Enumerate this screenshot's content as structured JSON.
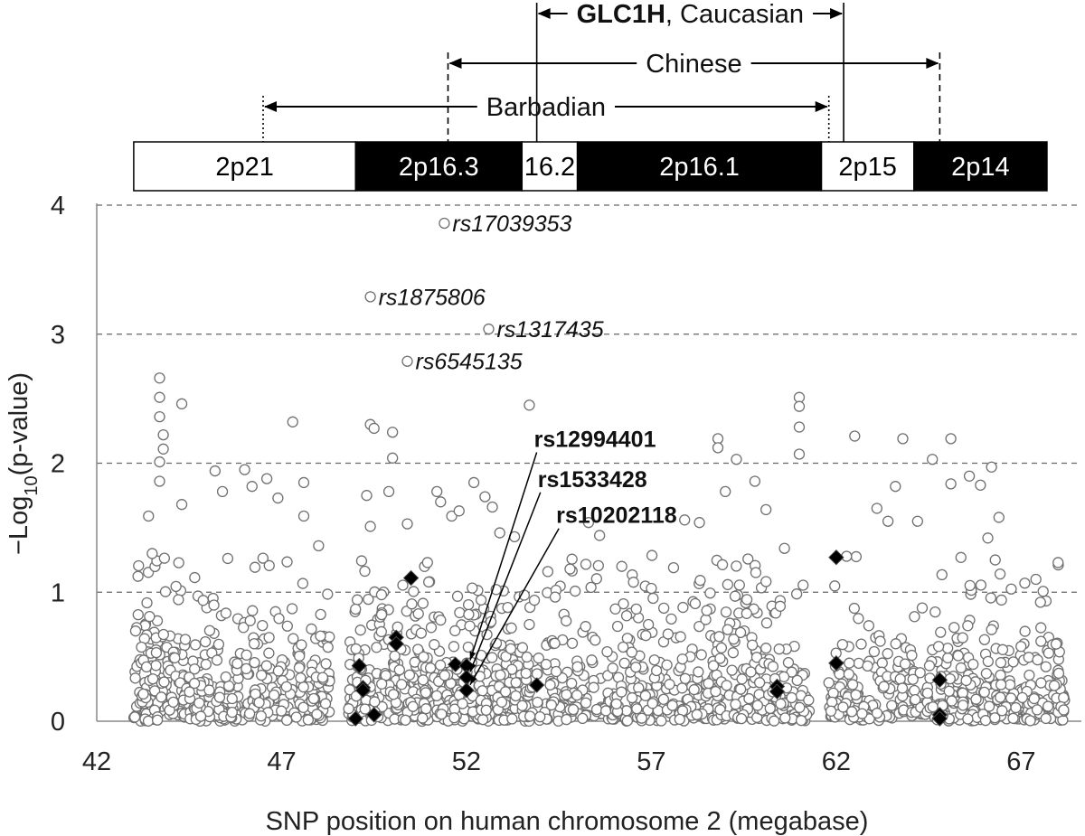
{
  "chart_data": {
    "type": "scatter",
    "xlabel": "SNP position on human chromosome 2 (megabase)",
    "ylabel_main": "−Log",
    "ylabel_sub": "10",
    "ylabel_end": "(p-value)",
    "xlim": [
      42,
      68.5
    ],
    "ylim": [
      0,
      4
    ],
    "x_ticks": [
      42,
      47,
      52,
      57,
      62,
      67
    ],
    "y_ticks": [
      0,
      1,
      2,
      3,
      4
    ],
    "y_gridlines": [
      1,
      2,
      3,
      4
    ],
    "grid": "horizontal dashed",
    "chromosome_bands": [
      {
        "label": "2p21",
        "start": 43.0,
        "end": 49.0,
        "fill": "#ffffff",
        "text_color": "#000000"
      },
      {
        "label": "2p16.3",
        "start": 49.0,
        "end": 53.5,
        "fill": "#000000",
        "text_color": "#ffffff"
      },
      {
        "label": "16.2",
        "start": 53.5,
        "end": 55.0,
        "fill": "#ffffff",
        "text_color": "#000000"
      },
      {
        "label": "2p16.1",
        "start": 55.0,
        "end": 61.6,
        "fill": "#000000",
        "text_color": "#ffffff"
      },
      {
        "label": "2p15",
        "start": 61.6,
        "end": 64.1,
        "fill": "#ffffff",
        "text_color": "#000000"
      },
      {
        "label": "2p14",
        "start": 64.1,
        "end": 67.7,
        "fill": "#000000",
        "text_color": "#ffffff"
      }
    ],
    "linkage_regions": [
      {
        "label_bold": "GLC1H",
        "label_rest": ", Caucasian",
        "start": 53.9,
        "end": 62.2,
        "start_style": "solid",
        "end_style": "solid"
      },
      {
        "label_bold": "",
        "label_rest": "Chinese",
        "start": 51.5,
        "end": 64.8,
        "start_style": "dashed",
        "end_style": "dashed"
      },
      {
        "label_bold": "",
        "label_rest": "Barbadian",
        "start": 46.5,
        "end": 61.8,
        "start_style": "dotted",
        "end_style": "dotted"
      }
    ],
    "labeled_snps": [
      {
        "name": "rs17039353",
        "x": 51.4,
        "y": 3.86,
        "style": "italic"
      },
      {
        "name": "rs1875806",
        "x": 49.4,
        "y": 3.29,
        "style": "italic"
      },
      {
        "name": "rs1317435",
        "x": 52.6,
        "y": 3.04,
        "style": "italic"
      },
      {
        "name": "rs6545135",
        "x": 50.4,
        "y": 2.79,
        "style": "italic"
      }
    ],
    "highlighted_snps": [
      {
        "name": "rs12994401",
        "x": 52.0,
        "y": 0.43,
        "label_x": 53.9,
        "label_y": 2.14
      },
      {
        "name": "rs1533428",
        "x": 52.0,
        "y": 0.34,
        "label_x": 54.0,
        "label_y": 1.83
      },
      {
        "name": "rs10202118",
        "x": 52.0,
        "y": 0.24,
        "label_x": 54.5,
        "label_y": 1.55
      }
    ],
    "diamond_snps": [
      {
        "x": 50.5,
        "y": 1.11
      },
      {
        "x": 50.1,
        "y": 0.65
      },
      {
        "x": 50.1,
        "y": 0.6
      },
      {
        "x": 49.1,
        "y": 0.43
      },
      {
        "x": 49.2,
        "y": 0.26
      },
      {
        "x": 49.2,
        "y": 0.24
      },
      {
        "x": 49.5,
        "y": 0.05
      },
      {
        "x": 49.0,
        "y": 0.02
      },
      {
        "x": 51.7,
        "y": 0.44
      },
      {
        "x": 52.0,
        "y": 0.43
      },
      {
        "x": 52.0,
        "y": 0.34
      },
      {
        "x": 52.0,
        "y": 0.24
      },
      {
        "x": 53.9,
        "y": 0.28
      },
      {
        "x": 60.4,
        "y": 0.27
      },
      {
        "x": 60.4,
        "y": 0.23
      },
      {
        "x": 62.0,
        "y": 1.27
      },
      {
        "x": 62.0,
        "y": 0.45
      },
      {
        "x": 64.8,
        "y": 0.32
      },
      {
        "x": 64.8,
        "y": 0.05
      },
      {
        "x": 64.8,
        "y": 0.02
      }
    ],
    "circle_snps": {
      "description_free": true,
      "peaks": [
        [
          43.7,
          2.66
        ],
        [
          43.7,
          2.51
        ],
        [
          43.7,
          2.36
        ],
        [
          43.8,
          2.22
        ],
        [
          43.8,
          2.11
        ],
        [
          43.7,
          2.01
        ],
        [
          43.7,
          1.86
        ],
        [
          44.3,
          2.46
        ],
        [
          43.4,
          1.59
        ],
        [
          43.5,
          1.3
        ],
        [
          44.3,
          1.68
        ],
        [
          45.2,
          1.94
        ],
        [
          45.4,
          1.78
        ],
        [
          46.0,
          1.95
        ],
        [
          46.2,
          1.82
        ],
        [
          46.6,
          1.88
        ],
        [
          46.9,
          1.73
        ],
        [
          47.3,
          2.32
        ],
        [
          47.6,
          1.85
        ],
        [
          47.6,
          1.59
        ],
        [
          48.0,
          1.36
        ],
        [
          49.3,
          1.75
        ],
        [
          49.4,
          2.3
        ],
        [
          49.5,
          2.27
        ],
        [
          49.4,
          1.51
        ],
        [
          50.0,
          2.24
        ],
        [
          50.0,
          2.04
        ],
        [
          50.4,
          1.53
        ],
        [
          49.9,
          1.78
        ],
        [
          51.2,
          1.78
        ],
        [
          51.3,
          1.7
        ],
        [
          51.6,
          1.59
        ],
        [
          51.8,
          1.63
        ],
        [
          52.2,
          1.85
        ],
        [
          52.5,
          1.74
        ],
        [
          52.7,
          1.66
        ],
        [
          52.9,
          1.46
        ],
        [
          53.3,
          1.43
        ],
        [
          53.7,
          2.45
        ],
        [
          54.2,
          1.16
        ],
        [
          54.8,
          1.18
        ],
        [
          55.3,
          1.54
        ],
        [
          55.6,
          1.44
        ],
        [
          56.2,
          1.2
        ],
        [
          57.0,
          1.03
        ],
        [
          57.6,
          1.19
        ],
        [
          57.9,
          1.56
        ],
        [
          58.3,
          1.54
        ],
        [
          58.8,
          2.19
        ],
        [
          58.8,
          2.12
        ],
        [
          59.3,
          2.03
        ],
        [
          59.0,
          1.78
        ],
        [
          59.8,
          1.86
        ],
        [
          60.1,
          1.64
        ],
        [
          60.6,
          1.34
        ],
        [
          61.0,
          2.51
        ],
        [
          61.0,
          2.44
        ],
        [
          61.0,
          2.28
        ],
        [
          61.0,
          2.07
        ],
        [
          62.5,
          2.21
        ],
        [
          63.1,
          1.65
        ],
        [
          63.4,
          1.55
        ],
        [
          63.6,
          1.82
        ],
        [
          63.8,
          2.19
        ],
        [
          64.2,
          1.55
        ],
        [
          64.6,
          2.03
        ],
        [
          65.1,
          2.19
        ],
        [
          65.1,
          1.84
        ],
        [
          65.6,
          1.9
        ],
        [
          65.9,
          1.83
        ],
        [
          66.2,
          1.97
        ],
        [
          66.4,
          1.58
        ],
        [
          66.1,
          1.42
        ],
        [
          66.3,
          1.25
        ],
        [
          67.1,
          1.07
        ],
        [
          67.4,
          1.1
        ],
        [
          68.0,
          1.23
        ]
      ]
    }
  }
}
